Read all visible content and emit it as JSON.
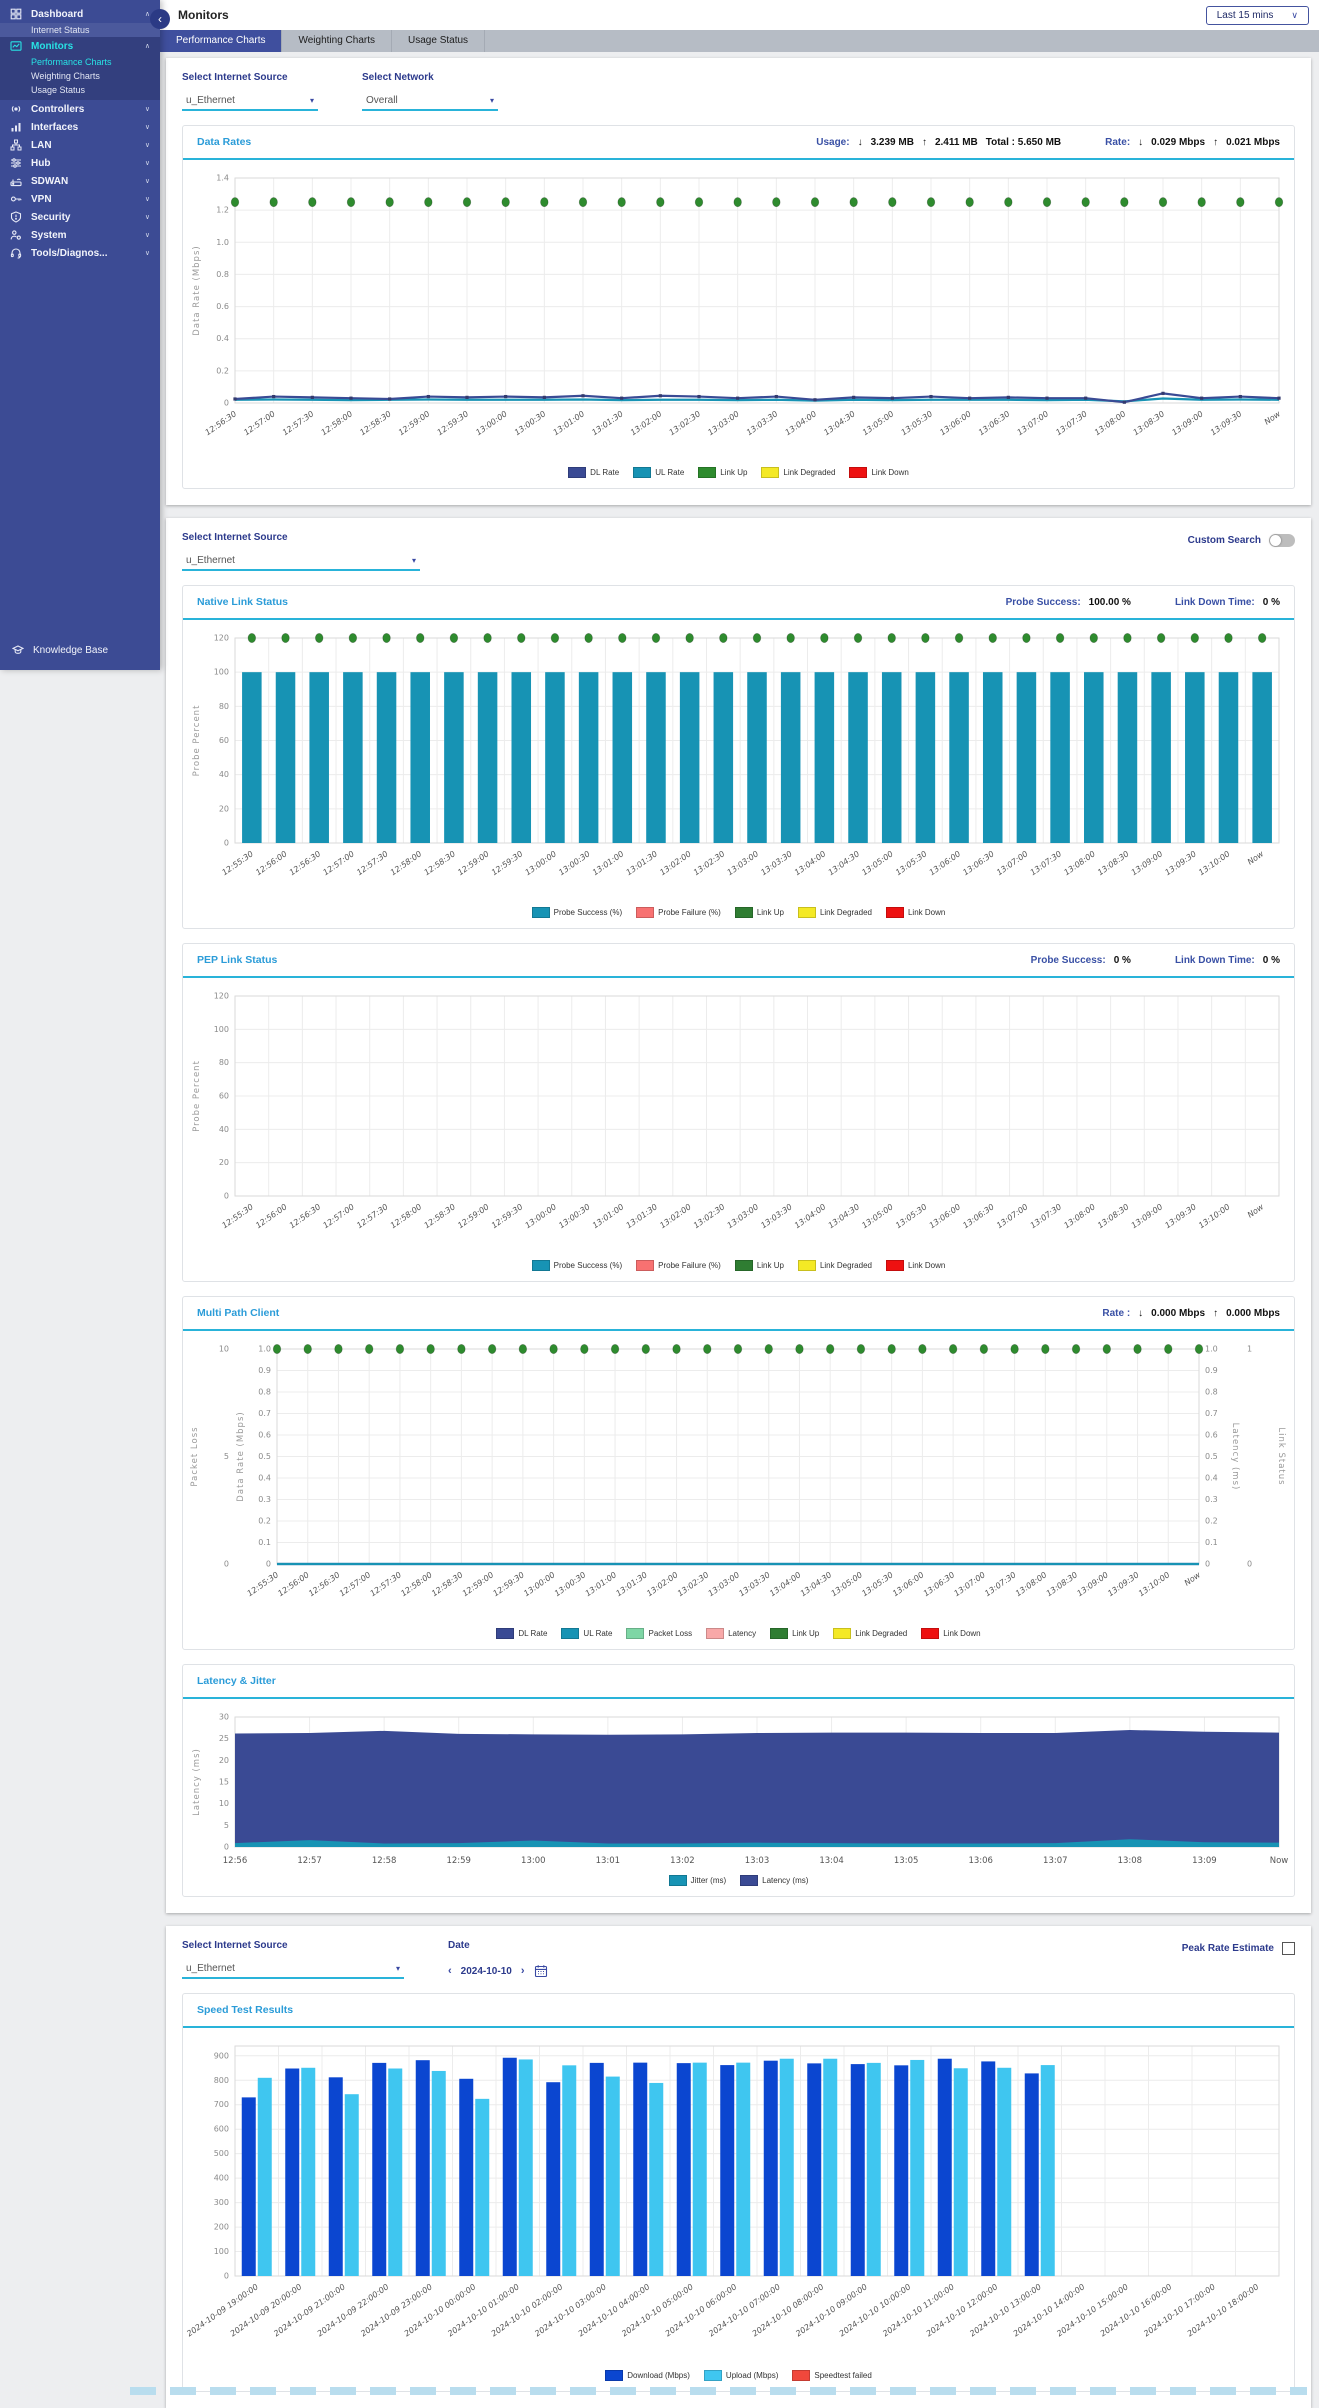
{
  "icons": {
    "down": "↓",
    "up": "↑",
    "chevron_down": "∨",
    "back": "‹",
    "prev": "‹",
    "next": "›",
    "dropdown": "▾"
  },
  "header": {
    "title": "Monitors",
    "time_range": "Last 15 mins"
  },
  "tabs": [
    {
      "label": "Performance Charts"
    },
    {
      "label": "Weighting Charts"
    },
    {
      "label": "Usage Status"
    }
  ],
  "sidebar": {
    "items": [
      {
        "label": "Dashboard",
        "chevron": "∧"
      },
      {
        "label": "Internet Status"
      },
      {
        "label": "Monitors",
        "chevron": "∧"
      },
      {
        "label": "Performance Charts"
      },
      {
        "label": "Weighting Charts"
      },
      {
        "label": "Usage Status"
      },
      {
        "label": "Controllers",
        "chevron": "∨"
      },
      {
        "label": "Interfaces",
        "chevron": "∨"
      },
      {
        "label": "LAN",
        "chevron": "∨"
      },
      {
        "label": "Hub",
        "chevron": "∨"
      },
      {
        "label": "SDWAN",
        "chevron": "∨"
      },
      {
        "label": "VPN",
        "chevron": "∨"
      },
      {
        "label": "Security",
        "chevron": "∨"
      },
      {
        "label": "System",
        "chevron": "∨"
      },
      {
        "label": "Tools/Diagnos...",
        "chevron": "∨"
      }
    ],
    "knowledge_base": "Knowledge Base"
  },
  "filters_a": {
    "source_label": "Select Internet Source",
    "source_value": "u_Ethernet",
    "network_label": "Select Network",
    "network_value": "Overall"
  },
  "filters_b": {
    "source_label": "Select Internet Source",
    "source_value": "u_Ethernet",
    "custom_search_label": "Custom Search"
  },
  "filters_c": {
    "source_label": "Select Internet Source",
    "source_value": "u_Ethernet",
    "date_label": "Date",
    "date_value": "2024-10-10",
    "peak_rate_label": "Peak Rate Estimate"
  },
  "data_rates": {
    "title": "Data Rates",
    "usage_label": "Usage:",
    "usage_down": "3.239 MB",
    "usage_up": "2.411 MB",
    "usage_total": "Total : 5.650 MB",
    "rate_label": "Rate:",
    "rate_down": "0.029 Mbps",
    "rate_up": "0.021 Mbps"
  },
  "native_link": {
    "title": "Native Link Status",
    "probe_label": "Probe Success:",
    "probe_value": "100.00 %",
    "down_label": "Link Down Time:",
    "down_value": "0 %"
  },
  "pep_link": {
    "title": "PEP Link Status",
    "probe_label": "Probe Success:",
    "probe_value": "0 %",
    "down_label": "Link Down Time:",
    "down_value": "0 %"
  },
  "multi_path": {
    "title": "Multi Path Client",
    "rate_label": "Rate :",
    "rate_down": "0.000 Mbps",
    "rate_up": "0.000 Mbps"
  },
  "latency_jitter": {
    "title": "Latency & Jitter"
  },
  "speed_test": {
    "title": "Speed Test Results"
  },
  "chart_data": [
    {
      "id": "data-rates",
      "type": "line",
      "title": "Data Rates",
      "ymax": 1.4,
      "axes_left": [
        {
          "label": "Data Rate (Mbps)",
          "max": 1.4,
          "ticks": [
            "0",
            "0.2",
            "0.4",
            "0.6",
            "0.8",
            "1.0",
            "1.2",
            "1.4"
          ]
        }
      ],
      "x": [
        "12:56:30",
        "12:57:00",
        "12:57:30",
        "12:58:00",
        "12:58:30",
        "12:59:00",
        "12:59:30",
        "13:00:00",
        "13:00:30",
        "13:01:00",
        "13:01:30",
        "13:02:00",
        "13:02:30",
        "13:03:00",
        "13:03:30",
        "13:04:00",
        "13:04:30",
        "13:05:00",
        "13:05:30",
        "13:06:00",
        "13:06:30",
        "13:07:00",
        "13:07:30",
        "13:08:00",
        "13:08:30",
        "13:09:00",
        "13:09:30",
        "Now"
      ],
      "series": [
        {
          "name": "UL Rate",
          "color": "#1793b4",
          "draw": "line",
          "values": [
            0.02,
            0.022,
            0.02,
            0.018,
            0.02,
            0.022,
            0.02,
            0.02,
            0.02,
            0.022,
            0.018,
            0.02,
            0.02,
            0.018,
            0.02,
            0.015,
            0.02,
            0.018,
            0.02,
            0.02,
            0.02,
            0.018,
            0.02,
            0.01,
            0.028,
            0.02,
            0.022,
            0.02
          ]
        },
        {
          "name": "DL Rate",
          "color": "#3a4a94",
          "draw": "line",
          "markers": true,
          "values": [
            0.025,
            0.04,
            0.035,
            0.03,
            0.025,
            0.04,
            0.035,
            0.04,
            0.035,
            0.045,
            0.03,
            0.045,
            0.04,
            0.03,
            0.04,
            0.02,
            0.035,
            0.03,
            0.04,
            0.03,
            0.035,
            0.03,
            0.03,
            0.005,
            0.06,
            0.03,
            0.04,
            0.03
          ]
        },
        {
          "name": "Link Up",
          "color": "#2e8b2e",
          "draw": "dots",
          "values": [
            1.25,
            1.25,
            1.25,
            1.25,
            1.25,
            1.25,
            1.25,
            1.25,
            1.25,
            1.25,
            1.25,
            1.25,
            1.25,
            1.25,
            1.25,
            1.25,
            1.25,
            1.25,
            1.25,
            1.25,
            1.25,
            1.25,
            1.25,
            1.25,
            1.25,
            1.25,
            1.25,
            1.25
          ]
        }
      ],
      "legend": [
        {
          "label": "DL Rate",
          "color": "#3a4a94"
        },
        {
          "label": "UL Rate",
          "color": "#1793b4"
        },
        {
          "label": "Link Up",
          "color": "#2e8b2e"
        },
        {
          "label": "Link Degraded",
          "color": "#f4e925"
        },
        {
          "label": "Link Down",
          "color": "#ee1111"
        }
      ]
    },
    {
      "id": "native-link",
      "type": "bar",
      "title": "Native Link Status",
      "ymax": 120,
      "axes_left": [
        {
          "label": "Probe Percent",
          "max": 120,
          "ticks": [
            "0",
            "20",
            "40",
            "60",
            "80",
            "100",
            "120"
          ]
        }
      ],
      "x": [
        "12:55:30",
        "12:56:00",
        "12:56:30",
        "12:57:00",
        "12:57:30",
        "12:58:00",
        "12:58:30",
        "12:59:00",
        "12:59:30",
        "13:00:00",
        "13:00:30",
        "13:01:00",
        "13:01:30",
        "13:02:00",
        "13:02:30",
        "13:03:00",
        "13:03:30",
        "13:04:00",
        "13:04:30",
        "13:05:00",
        "13:05:30",
        "13:06:00",
        "13:06:30",
        "13:07:00",
        "13:07:30",
        "13:08:00",
        "13:08:30",
        "13:09:00",
        "13:09:30",
        "13:10:00",
        "Now"
      ],
      "series": [
        {
          "name": "Probe Success (%)",
          "color": "#1793b4",
          "draw": "bar",
          "values": [
            100,
            100,
            100,
            100,
            100,
            100,
            100,
            100,
            100,
            100,
            100,
            100,
            100,
            100,
            100,
            100,
            100,
            100,
            100,
            100,
            100,
            100,
            100,
            100,
            100,
            100,
            100,
            100,
            100,
            100,
            100
          ]
        },
        {
          "name": "Link Up",
          "color": "#2e8b2e",
          "draw": "dots",
          "values": [
            120,
            120,
            120,
            120,
            120,
            120,
            120,
            120,
            120,
            120,
            120,
            120,
            120,
            120,
            120,
            120,
            120,
            120,
            120,
            120,
            120,
            120,
            120,
            120,
            120,
            120,
            120,
            120,
            120,
            120,
            120
          ]
        }
      ],
      "legend": [
        {
          "label": "Probe Success (%)",
          "color": "#1793b4"
        },
        {
          "label": "Probe Failure (%)",
          "color": "#f87171"
        },
        {
          "label": "Link Up",
          "color": "#2f7d32"
        },
        {
          "label": "Link Degraded",
          "color": "#f4e925"
        },
        {
          "label": "Link Down",
          "color": "#ee1111"
        }
      ]
    },
    {
      "id": "pep-link",
      "type": "bar",
      "title": "PEP Link Status",
      "ymax": 120,
      "axes_left": [
        {
          "label": "Probe Percent",
          "max": 120,
          "ticks": [
            "0",
            "20",
            "40",
            "60",
            "80",
            "100",
            "120"
          ]
        }
      ],
      "x": [
        "12:55:30",
        "12:56:00",
        "12:56:30",
        "12:57:00",
        "12:57:30",
        "12:58:00",
        "12:58:30",
        "12:59:00",
        "12:59:30",
        "13:00:00",
        "13:00:30",
        "13:01:00",
        "13:01:30",
        "13:02:00",
        "13:02:30",
        "13:03:00",
        "13:03:30",
        "13:04:00",
        "13:04:30",
        "13:05:00",
        "13:05:30",
        "13:06:00",
        "13:06:30",
        "13:07:00",
        "13:07:30",
        "13:08:00",
        "13:08:30",
        "13:09:00",
        "13:09:30",
        "13:10:00",
        "Now"
      ],
      "series": [],
      "legend": [
        {
          "label": "Probe Success (%)",
          "color": "#1793b4"
        },
        {
          "label": "Probe Failure (%)",
          "color": "#f87171"
        },
        {
          "label": "Link Up",
          "color": "#2f7d32"
        },
        {
          "label": "Link Degraded",
          "color": "#f4e925"
        },
        {
          "label": "Link Down",
          "color": "#ee1111"
        }
      ]
    },
    {
      "id": "multi-path",
      "type": "line",
      "title": "Multi Path Client",
      "ymax": 1,
      "axes_left": [
        {
          "label": "Data Rate (Mbps)",
          "max": 1,
          "ticks": [
            "0",
            "0.1",
            "0.2",
            "0.3",
            "0.4",
            "0.5",
            "0.6",
            "0.7",
            "0.8",
            "0.9",
            "1.0"
          ]
        },
        {
          "label": "Packet Loss",
          "max": 10,
          "ticks": [
            "0",
            "5",
            "10"
          ]
        }
      ],
      "axes_right": [
        {
          "label": "Latency (ms)",
          "max": 1,
          "ticks": [
            "0",
            "0.1",
            "0.2",
            "0.3",
            "0.4",
            "0.5",
            "0.6",
            "0.7",
            "0.8",
            "0.9",
            "1.0"
          ]
        },
        {
          "label": "Link Status",
          "max": 1,
          "ticks": [
            "0",
            "1"
          ]
        }
      ],
      "x": [
        "12:55:30",
        "12:56:00",
        "12:56:30",
        "12:57:00",
        "12:57:30",
        "12:58:00",
        "12:58:30",
        "12:59:00",
        "12:59:30",
        "13:00:00",
        "13:00:30",
        "13:01:00",
        "13:01:30",
        "13:02:00",
        "13:02:30",
        "13:03:00",
        "13:03:30",
        "13:04:00",
        "13:04:30",
        "13:05:00",
        "13:05:30",
        "13:06:00",
        "13:06:30",
        "13:07:00",
        "13:07:30",
        "13:08:00",
        "13:08:30",
        "13:09:00",
        "13:09:30",
        "13:10:00",
        "Now"
      ],
      "series": [
        {
          "name": "DL Rate",
          "color": "#3a4a94",
          "draw": "line",
          "values": [
            0,
            0,
            0,
            0,
            0,
            0,
            0,
            0,
            0,
            0,
            0,
            0,
            0,
            0,
            0,
            0,
            0,
            0,
            0,
            0,
            0,
            0,
            0,
            0,
            0,
            0,
            0,
            0,
            0,
            0,
            0
          ]
        },
        {
          "name": "UL Rate",
          "color": "#1793b4",
          "draw": "line",
          "values": [
            0,
            0,
            0,
            0,
            0,
            0,
            0,
            0,
            0,
            0,
            0,
            0,
            0,
            0,
            0,
            0,
            0,
            0,
            0,
            0,
            0,
            0,
            0,
            0,
            0,
            0,
            0,
            0,
            0,
            0,
            0
          ]
        },
        {
          "name": "Link Up",
          "color": "#2e8b2e",
          "draw": "dots",
          "values": [
            1,
            1,
            1,
            1,
            1,
            1,
            1,
            1,
            1,
            1,
            1,
            1,
            1,
            1,
            1,
            1,
            1,
            1,
            1,
            1,
            1,
            1,
            1,
            1,
            1,
            1,
            1,
            1,
            1,
            1,
            1
          ]
        }
      ],
      "legend": [
        {
          "label": "DL Rate",
          "color": "#3a4a94"
        },
        {
          "label": "UL Rate",
          "color": "#1793b4"
        },
        {
          "label": "Packet Loss",
          "color": "#7ed6a5"
        },
        {
          "label": "Latency",
          "color": "#f8a8a8"
        },
        {
          "label": "Link Up",
          "color": "#2f7d32"
        },
        {
          "label": "Link Degraded",
          "color": "#f4e925"
        },
        {
          "label": "Link Down",
          "color": "#ee1111"
        }
      ]
    },
    {
      "id": "latency-jitter",
      "type": "area",
      "title": "Latency & Jitter",
      "ymax": 30,
      "axes_left": [
        {
          "label": "Latency (ms)",
          "max": 30,
          "ticks": [
            "0",
            "5",
            "10",
            "15",
            "20",
            "25",
            "30"
          ]
        }
      ],
      "x": [
        "12:56",
        "12:57",
        "12:58",
        "12:59",
        "13:00",
        "13:01",
        "13:02",
        "13:03",
        "13:04",
        "13:05",
        "13:06",
        "13:07",
        "13:08",
        "13:09",
        "Now"
      ],
      "series": [
        {
          "name": "Latency (ms)",
          "color": "#3a4a94",
          "draw": "area",
          "values": [
            26.2,
            26.3,
            26.8,
            26.1,
            26.0,
            25.9,
            26.0,
            26.3,
            26.4,
            26.4,
            26.3,
            26.3,
            27.0,
            26.6,
            26.4
          ]
        },
        {
          "name": "Jitter (ms)",
          "color": "#1793b4",
          "draw": "area",
          "values": [
            0.9,
            1.6,
            0.8,
            0.9,
            1.5,
            0.8,
            0.8,
            1.0,
            0.9,
            0.8,
            0.8,
            0.9,
            1.8,
            1.1,
            1.0
          ]
        }
      ],
      "legend": [
        {
          "label": "Jitter (ms)",
          "color": "#1793b4"
        },
        {
          "label": "Latency (ms)",
          "color": "#3a4a94"
        }
      ]
    },
    {
      "id": "speed-test",
      "type": "bar",
      "title": "Speed Test Results",
      "ymax": 940,
      "axes_left": [
        {
          "label": "",
          "max": 940,
          "ticks": [
            "0",
            "100",
            "200",
            "300",
            "400",
            "500",
            "600",
            "700",
            "800",
            "900"
          ]
        }
      ],
      "x": [
        "2024-10-09 19:00:00",
        "2024-10-09 20:00:00",
        "2024-10-09 21:00:00",
        "2024-10-09 22:00:00",
        "2024-10-09 23:00:00",
        "2024-10-10 00:00:00",
        "2024-10-10 01:00:00",
        "2024-10-10 02:00:00",
        "2024-10-10 03:00:00",
        "2024-10-10 04:00:00",
        "2024-10-10 05:00:00",
        "2024-10-10 06:00:00",
        "2024-10-10 07:00:00",
        "2024-10-10 08:00:00",
        "2024-10-10 09:00:00",
        "2024-10-10 10:00:00",
        "2024-10-10 11:00:00",
        "2024-10-10 12:00:00",
        "2024-10-10 13:00:00",
        "2024-10-10 14:00:00",
        "2024-10-10 15:00:00",
        "2024-10-10 16:00:00",
        "2024-10-10 17:00:00",
        "2024-10-10 18:00:00"
      ],
      "series": [
        {
          "name": "Download (Mbps)",
          "color": "#0b46d0",
          "draw": "gbar",
          "values": [
            730,
            848,
            812,
            871,
            882,
            806,
            892,
            792,
            871,
            872,
            870,
            862,
            880,
            869,
            866,
            861,
            888,
            877,
            828
          ]
        },
        {
          "name": "Upload (Mbps)",
          "color": "#3fc6f0",
          "draw": "gbar",
          "values": [
            810,
            851,
            743,
            848,
            838,
            724,
            885,
            861,
            815,
            789,
            872,
            872,
            888,
            888,
            871,
            883,
            849,
            851,
            862
          ]
        }
      ],
      "legend": [
        {
          "label": "Download (Mbps)",
          "color": "#0b46d0"
        },
        {
          "label": "Upload (Mbps)",
          "color": "#3fc6f0"
        },
        {
          "label": "Speedtest failed",
          "color": "#f0483c"
        }
      ]
    }
  ]
}
